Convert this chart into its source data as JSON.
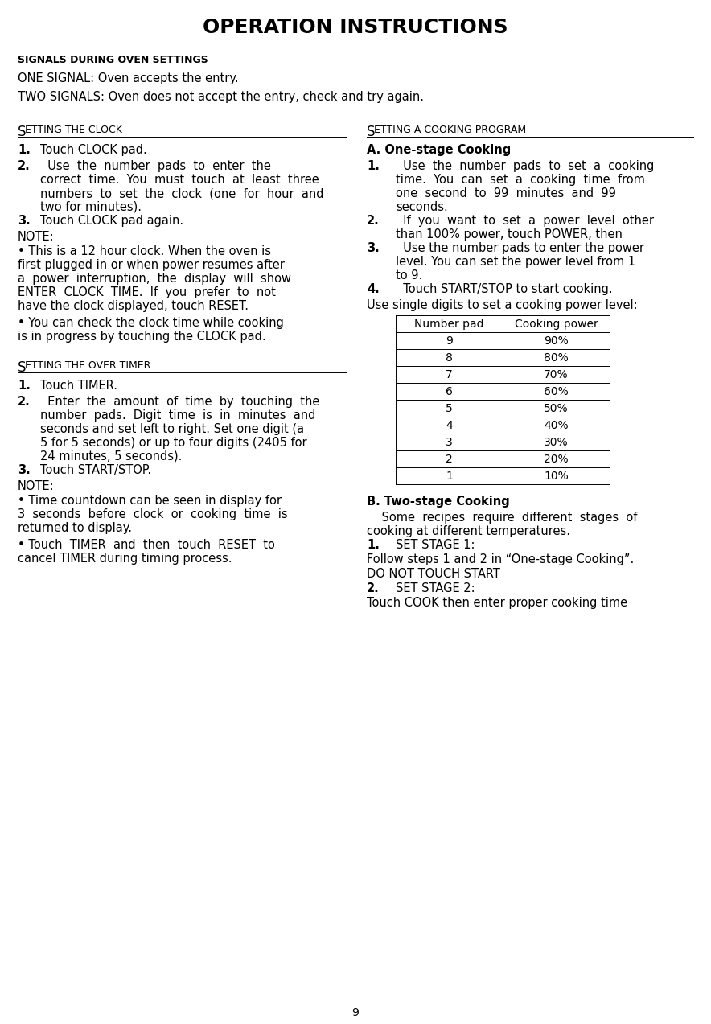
{
  "title": "OPERATION INSTRUCTIONS",
  "bg_color": "#ffffff",
  "text_color": "#000000",
  "page_number": "9",
  "signals_header": "SIGNALS DURING OVEN SETTINGS",
  "signal1": "ONE SIGNAL: Oven accepts the entry.",
  "signal2": "TWO SIGNALS: Oven does not accept the entry, check and try again.",
  "left_section_title_big": "S",
  "left_section_title_rest": "ETTING THE CLOCK",
  "left_section2_title_big": "S",
  "left_section2_title_rest": "ETTING THE OVER TIMER",
  "right_section_title_big": "S",
  "right_section_title_rest": "ETTING A COOKING PROGRAM",
  "table_headers": [
    "Number pad",
    "Cooking power"
  ],
  "table_rows": [
    [
      "9",
      "90%"
    ],
    [
      "8",
      "80%"
    ],
    [
      "7",
      "70%"
    ],
    [
      "6",
      "60%"
    ],
    [
      "5",
      "50%"
    ],
    [
      "4",
      "40%"
    ],
    [
      "3",
      "30%"
    ],
    [
      "2",
      "20%"
    ],
    [
      "1",
      "10%"
    ]
  ]
}
